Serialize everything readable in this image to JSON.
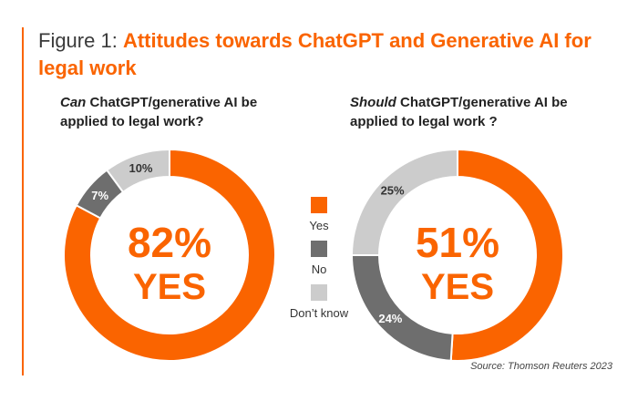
{
  "figure": {
    "label": "Figure 1:",
    "title": "Attitudes towards ChatGPT and Generative AI for legal work",
    "source": "Source: Thomson Reuters 2023"
  },
  "colors": {
    "yes": "#fa6400",
    "no": "#6e6e6e",
    "dont_know": "#cccccc",
    "accent": "#fa6400"
  },
  "legend": [
    {
      "label": "Yes",
      "color": "#fa6400"
    },
    {
      "label": "No",
      "color": "#6e6e6e"
    },
    {
      "label": "Don’t know",
      "color": "#cccccc"
    }
  ],
  "chart_data": [
    {
      "type": "pie",
      "subtitle_emph": "Can",
      "subtitle_rest": " ChatGPT/generative AI be applied to legal work?",
      "center_value": "82%",
      "center_label": "YES",
      "categories": [
        "Yes",
        "No",
        "Don’t know"
      ],
      "values": [
        82,
        7,
        10
      ],
      "value_labels": [
        "",
        "7%",
        "10%"
      ],
      "colors": [
        "#fa6400",
        "#6e6e6e",
        "#cccccc"
      ]
    },
    {
      "type": "pie",
      "subtitle_emph": "Should",
      "subtitle_rest": " ChatGPT/generative AI be applied to legal work ?",
      "center_value": "51%",
      "center_label": "YES",
      "categories": [
        "Yes",
        "No",
        "Don’t know"
      ],
      "values": [
        51,
        24,
        25
      ],
      "value_labels": [
        "",
        "24%",
        "25%"
      ],
      "colors": [
        "#fa6400",
        "#6e6e6e",
        "#cccccc"
      ]
    }
  ]
}
